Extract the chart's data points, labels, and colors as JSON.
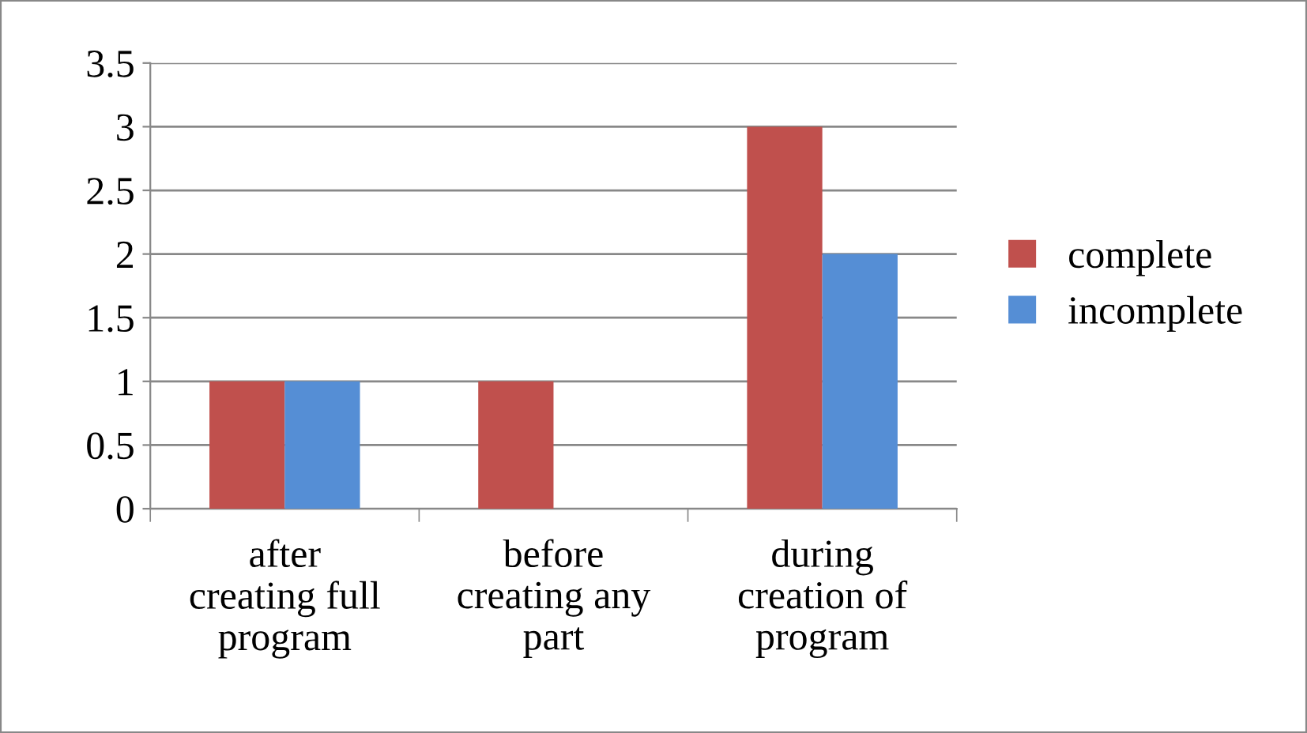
{
  "chart_data": {
    "type": "bar",
    "categories": [
      "after\ncreating full\nprogram",
      "before\ncreating any\npart",
      "during\ncreation of\nprogram"
    ],
    "series": [
      {
        "name": "complete",
        "color": "#c0504d",
        "values": [
          1,
          1,
          3
        ]
      },
      {
        "name": "incomplete",
        "color": "#558ed5",
        "values": [
          1,
          0,
          2
        ]
      }
    ],
    "ylim": [
      0,
      3.5
    ],
    "yticks": [
      0,
      0.5,
      1,
      1.5,
      2,
      2.5,
      3,
      3.5
    ],
    "grid": "y",
    "legend": "right"
  }
}
